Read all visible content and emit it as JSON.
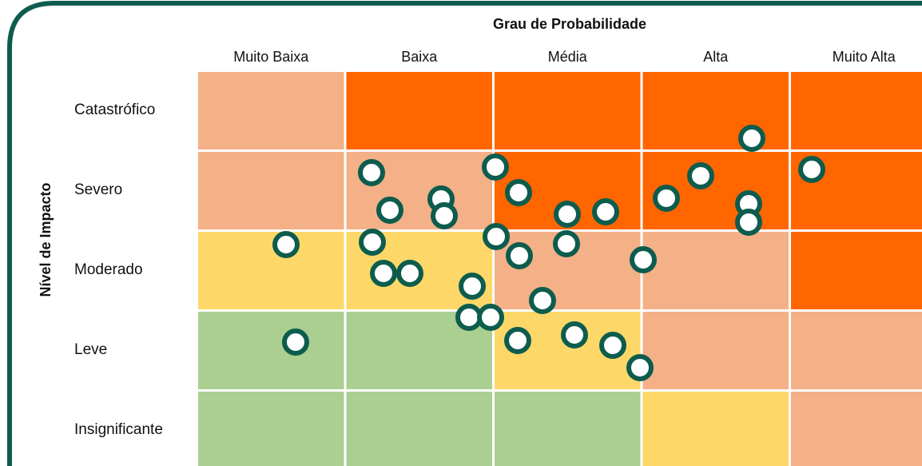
{
  "title": "Grau de Probabilidade",
  "y_label": "Nível de Impacto",
  "columns": [
    "Muito Baixa",
    "Baixa",
    "Média",
    "Alta",
    "Muito Alta"
  ],
  "rows": [
    {
      "label": "Catastrófico",
      "colors": [
        "#f4b087",
        "#ff6600",
        "#ff6600",
        "#ff6600",
        "#ff6600"
      ]
    },
    {
      "label": "Severo",
      "colors": [
        "#f4b087",
        "#f4b087",
        "#ff6600",
        "#ff6600",
        "#ff6600"
      ]
    },
    {
      "label": "Moderado",
      "colors": [
        "#fdd868",
        "#fdd868",
        "#f4b087",
        "#f4b087",
        "#ff6600"
      ]
    },
    {
      "label": "Leve",
      "colors": [
        "#aacf90",
        "#aacf90",
        "#fdd868",
        "#f4b087",
        "#f4b087"
      ]
    },
    {
      "label": "Insignificante",
      "colors": [
        "#aacf90",
        "#aacf90",
        "#aacf90",
        "#fdd868",
        "#f4b087"
      ]
    }
  ]
}
